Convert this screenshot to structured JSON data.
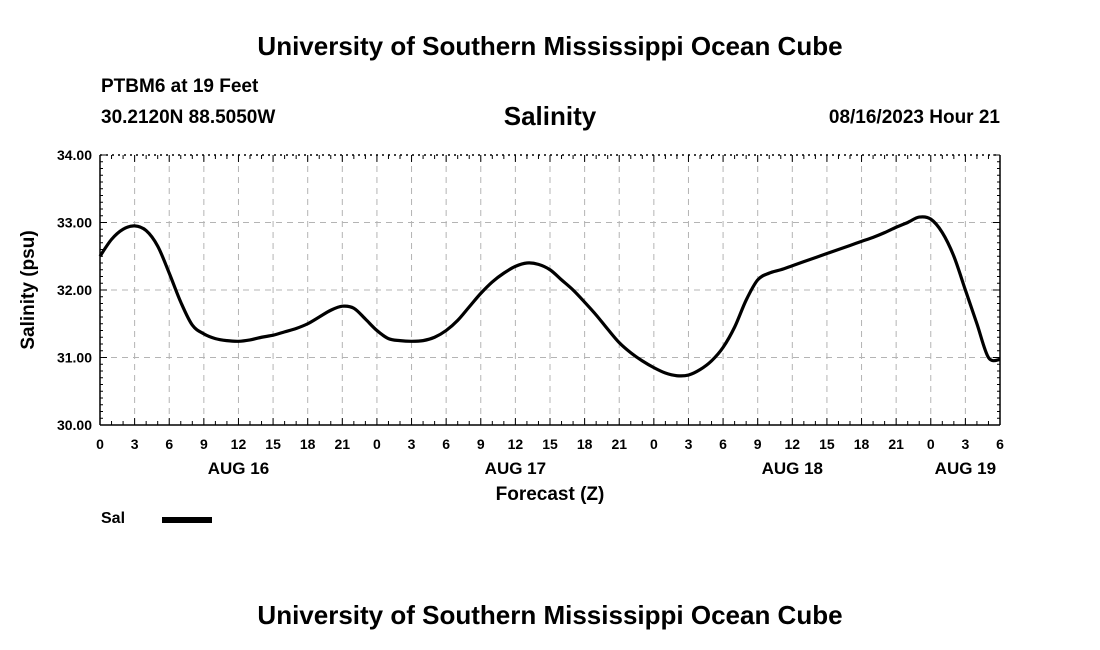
{
  "header": {
    "title": "University of Southern Mississippi Ocean Cube",
    "station": "PTBM6 at 19 Feet",
    "coords": "30.2120N  88.5050W",
    "datetime": "08/16/2023 Hour 21"
  },
  "footer": {
    "title": "University of Southern Mississippi Ocean Cube"
  },
  "legend": {
    "label": "Sal",
    "color": "#000000"
  },
  "chart_data": {
    "type": "line",
    "title": "Salinity",
    "xlabel": "Forecast (Z)",
    "ylabel": "Salinity (psu)",
    "xlim": [
      0,
      78
    ],
    "ylim": [
      30.0,
      34.0
    ],
    "yticks": [
      "30.00",
      "31.00",
      "32.00",
      "33.00",
      "34.00"
    ],
    "xtick_hours": [
      0,
      3,
      6,
      9,
      12,
      15,
      18,
      21,
      24,
      27,
      30,
      33,
      36,
      39,
      42,
      45,
      48,
      51,
      54,
      57,
      60,
      63,
      66,
      69,
      72,
      75,
      78
    ],
    "xtick_labels": [
      "0",
      "3",
      "6",
      "9",
      "12",
      "15",
      "18",
      "21",
      "0",
      "3",
      "6",
      "9",
      "12",
      "15",
      "18",
      "21",
      "0",
      "3",
      "6",
      "9",
      "12",
      "15",
      "18",
      "21",
      "0",
      "3",
      "6"
    ],
    "date_labels": [
      {
        "hour": 12,
        "label": "AUG 16"
      },
      {
        "hour": 36,
        "label": "AUG 17"
      },
      {
        "hour": 60,
        "label": "AUG 18"
      },
      {
        "hour": 75,
        "label": "AUG 19"
      }
    ],
    "grid": true,
    "series": [
      {
        "name": "Sal",
        "x": [
          0,
          1,
          2,
          3,
          4,
          5,
          6,
          7,
          8,
          9,
          10,
          11,
          12,
          13,
          14,
          15,
          16,
          17,
          18,
          19,
          20,
          21,
          22,
          23,
          24,
          25,
          26,
          27,
          28,
          29,
          30,
          31,
          32,
          33,
          34,
          35,
          36,
          37,
          38,
          39,
          40,
          41,
          42,
          43,
          44,
          45,
          46,
          47,
          48,
          49,
          50,
          51,
          52,
          53,
          54,
          55,
          56,
          57,
          58,
          59,
          60,
          61,
          62,
          63,
          64,
          65,
          66,
          67,
          68,
          69,
          70,
          71,
          72,
          73,
          74,
          75,
          76,
          77,
          78
        ],
        "values": [
          32.5,
          32.75,
          32.9,
          32.95,
          32.88,
          32.65,
          32.25,
          31.82,
          31.48,
          31.35,
          31.28,
          31.25,
          31.24,
          31.26,
          31.3,
          31.33,
          31.38,
          31.43,
          31.5,
          31.6,
          31.7,
          31.76,
          31.73,
          31.57,
          31.4,
          31.28,
          31.25,
          31.24,
          31.25,
          31.3,
          31.4,
          31.55,
          31.75,
          31.95,
          32.12,
          32.25,
          32.35,
          32.4,
          32.38,
          32.3,
          32.15,
          32.0,
          31.82,
          31.63,
          31.42,
          31.22,
          31.07,
          30.95,
          30.85,
          30.77,
          30.73,
          30.74,
          30.82,
          30.95,
          31.15,
          31.45,
          31.85,
          32.15,
          32.25,
          32.3,
          32.36,
          32.42,
          32.48,
          32.54,
          32.6,
          32.66,
          32.72,
          32.78,
          32.85,
          32.93,
          33.0,
          33.08,
          33.05,
          32.85,
          32.5,
          32.0,
          31.5,
          31.0,
          30.97
        ]
      }
    ]
  }
}
